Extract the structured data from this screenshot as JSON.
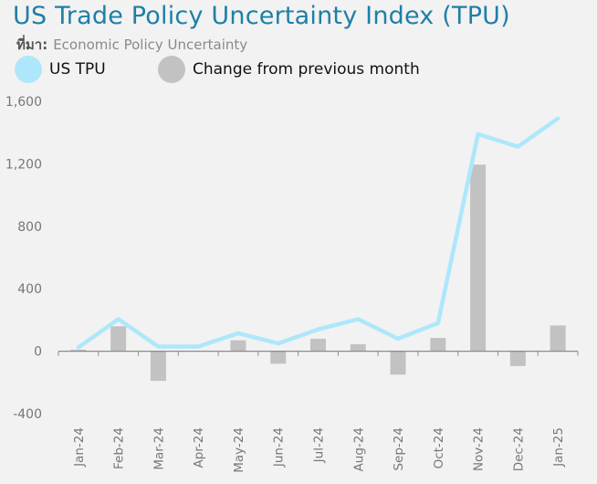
{
  "header": {
    "title": "US Trade Policy Uncertainty Index (TPU)",
    "source_label": "ที่มา:",
    "source_value": "Economic Policy Uncertainty"
  },
  "legend": [
    {
      "label": "US TPU",
      "color": "#aee7fb",
      "icon": "circle-icon"
    },
    {
      "label": "Change from previous month",
      "color": "#c2c2c2",
      "icon": "circle-icon"
    }
  ],
  "chart_data": {
    "type": "bar",
    "title": "US Trade Policy Uncertainty Index (TPU)",
    "categories": [
      "Jan-24",
      "Feb-24",
      "Mar-24",
      "Apr-24",
      "May-24",
      "Jun-24",
      "Jul-24",
      "Aug-24",
      "Sep-24",
      "Oct-24",
      "Nov-24",
      "Dec-24",
      "Jan-25"
    ],
    "series": [
      {
        "name": "US TPU",
        "type": "line",
        "color": "#aee7fb",
        "values": [
          25,
          205,
          30,
          30,
          115,
          50,
          140,
          205,
          80,
          180,
          1390,
          1310,
          1490
        ]
      },
      {
        "name": "Change from previous month",
        "type": "bar",
        "color": "#c2c2c2",
        "values": [
          10,
          160,
          -190,
          0,
          70,
          -80,
          80,
          45,
          -150,
          85,
          1195,
          -95,
          165
        ]
      }
    ],
    "yticks": [
      -400,
      0,
      400,
      800,
      1200,
      1600
    ],
    "ytick_labels": [
      "-400",
      "0",
      "400",
      "800",
      "1,200",
      "1,600"
    ],
    "ylim": [
      -400,
      1600
    ],
    "xlabel": "",
    "ylabel": "",
    "grid": false,
    "legend_position": "top-left"
  }
}
